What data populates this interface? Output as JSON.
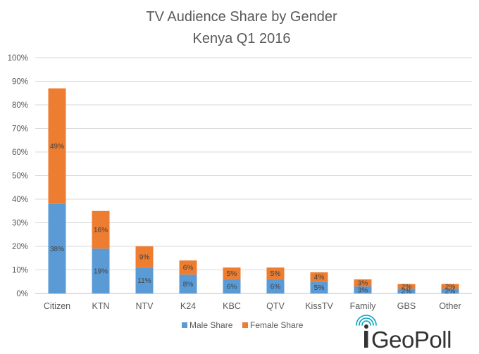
{
  "chart_data": {
    "type": "bar",
    "stacked": true,
    "title": [
      "TV Audience Share by Gender",
      "Kenya Q1 2016"
    ],
    "categories": [
      "Citizen",
      "KTN",
      "NTV",
      "K24",
      "KBC",
      "QTV",
      "KissTV",
      "Family",
      "GBS",
      "Other"
    ],
    "series": [
      {
        "name": "Male Share",
        "color": "#5B9BD5",
        "values": [
          38,
          19,
          11,
          8,
          6,
          6,
          5,
          3,
          2,
          2
        ],
        "labels": [
          "38%",
          "19%",
          "11%",
          "8%",
          "6%",
          "6%",
          "5%",
          "3%",
          "2%",
          "2%"
        ]
      },
      {
        "name": "Female Share",
        "color": "#ED7D31",
        "values": [
          49,
          16,
          9,
          6,
          5,
          5,
          4,
          3,
          2,
          2
        ],
        "labels": [
          "49%",
          "16%",
          "9%",
          "6%",
          "5%",
          "5%",
          "4%",
          "3%",
          "2%",
          "2%"
        ]
      }
    ],
    "ylim": [
      0,
      100
    ],
    "yticks": [
      "0%",
      "10%",
      "20%",
      "30%",
      "40%",
      "50%",
      "60%",
      "70%",
      "80%",
      "90%",
      "100%"
    ],
    "grid": true,
    "legend_position": "bottom"
  },
  "logo": {
    "text_prefix": "G",
    "text_rest": "eoPoll",
    "i_letter": "i",
    "icon": "signal-waves-icon"
  }
}
